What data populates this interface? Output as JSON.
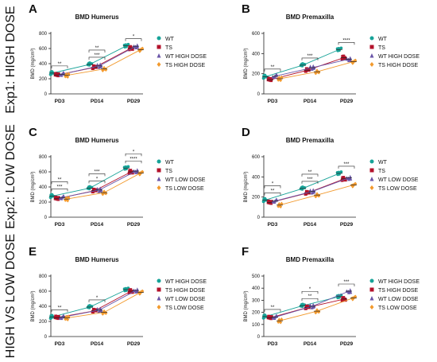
{
  "row_labels": [
    "Exp1: HIGH DOSE",
    "Exp2: LOW DOSE",
    "HIGH VS LOW DOSE"
  ],
  "colors": {
    "teal": "#17a398",
    "red": "#b3122b",
    "purple": "#6a55a8",
    "orange": "#f29a2e"
  },
  "chart_data": [
    {
      "type": "scatter",
      "panel": "A",
      "title": "BMD Humerus",
      "ylabel": "BMD (mg/cm³)",
      "ylim": [
        0,
        800
      ],
      "yticks": [
        0,
        200,
        400,
        600,
        800
      ],
      "categories": [
        "PD3",
        "PD14",
        "PD29"
      ],
      "series": [
        {
          "name": "WT",
          "color": "#17a398",
          "marker": "circle",
          "values": [
            275,
            390,
            635
          ]
        },
        {
          "name": "TS",
          "color": "#b3122b",
          "marker": "square",
          "values": [
            250,
            350,
            605
          ]
        },
        {
          "name": "WT HIGH DOSE",
          "color": "#6a55a8",
          "marker": "triangle",
          "values": [
            260,
            370,
            630
          ]
        },
        {
          "name": "TS HIGH DOSE",
          "color": "#f29a2e",
          "marker": "diamond",
          "values": [
            245,
            330,
            585
          ]
        }
      ],
      "annotations": [
        "**",
        "***",
        "*",
        "**"
      ]
    },
    {
      "type": "scatter",
      "panel": "B",
      "title": "BMD Premaxilla",
      "ylabel": "BMD (mg/cm³)",
      "ylim": [
        0,
        600
      ],
      "yticks": [
        0,
        200,
        400,
        600
      ],
      "categories": [
        "PD3",
        "PD14",
        "PD29"
      ],
      "series": [
        {
          "name": "WT",
          "color": "#17a398",
          "marker": "circle",
          "values": [
            170,
            285,
            440
          ]
        },
        {
          "name": "TS",
          "color": "#b3122b",
          "marker": "square",
          "values": [
            140,
            235,
            360
          ]
        },
        {
          "name": "WT HIGH DOSE",
          "color": "#6a55a8",
          "marker": "triangle",
          "values": [
            175,
            260,
            345
          ]
        },
        {
          "name": "TS HIGH DOSE",
          "color": "#f29a2e",
          "marker": "diamond",
          "values": [
            150,
            220,
            320
          ]
        }
      ],
      "annotations": [
        "**",
        "***",
        "****"
      ]
    },
    {
      "type": "scatter",
      "panel": "C",
      "title": "BMD Humerus",
      "ylabel": "BMD (mg/cm³)",
      "ylim": [
        0,
        800
      ],
      "yticks": [
        0,
        200,
        400,
        600,
        800
      ],
      "categories": [
        "PD3",
        "PD14",
        "PD29"
      ],
      "series": [
        {
          "name": "WT",
          "color": "#17a398",
          "marker": "circle",
          "values": [
            280,
            385,
            650
          ]
        },
        {
          "name": "TS",
          "color": "#b3122b",
          "marker": "square",
          "values": [
            245,
            350,
            600
          ]
        },
        {
          "name": "WT LOW DOSE",
          "color": "#6a55a8",
          "marker": "triangle",
          "values": [
            260,
            360,
            610
          ]
        },
        {
          "name": "TS LOW DOSE",
          "color": "#f29a2e",
          "marker": "diamond",
          "values": [
            240,
            325,
            585
          ]
        }
      ],
      "annotations": [
        "***",
        "*",
        "****",
        "***",
        "**",
        "*"
      ]
    },
    {
      "type": "scatter",
      "panel": "D",
      "title": "BMD Premaxilla",
      "ylabel": "BMD (mg/cm³)",
      "ylim": [
        0,
        600
      ],
      "yticks": [
        0,
        200,
        400,
        600
      ],
      "categories": [
        "PD3",
        "PD14",
        "PD29"
      ],
      "series": [
        {
          "name": "WT",
          "color": "#17a398",
          "marker": "circle",
          "values": [
            170,
            285,
            435
          ]
        },
        {
          "name": "TS",
          "color": "#b3122b",
          "marker": "square",
          "values": [
            145,
            240,
            380
          ]
        },
        {
          "name": "WT LOW DOSE",
          "color": "#6a55a8",
          "marker": "triangle",
          "values": [
            160,
            255,
            390
          ]
        },
        {
          "name": "TS LOW DOSE",
          "color": "#f29a2e",
          "marker": "diamond",
          "values": [
            120,
            220,
            320
          ]
        }
      ],
      "annotations": [
        "**",
        "***",
        "***",
        "**",
        "*"
      ]
    },
    {
      "type": "scatter",
      "panel": "E",
      "title": "BMD Humerus",
      "ylabel": "BMD (mg/cm³)",
      "ylim": [
        0,
        800
      ],
      "yticks": [
        0,
        200,
        400,
        600,
        800
      ],
      "categories": [
        "PD3",
        "PD14",
        "PD29"
      ],
      "series": [
        {
          "name": "WT HIGH DOSE",
          "color": "#17a398",
          "marker": "circle",
          "values": [
            260,
            390,
            620
          ]
        },
        {
          "name": "TS HIGH DOSE",
          "color": "#b3122b",
          "marker": "square",
          "values": [
            250,
            340,
            600
          ]
        },
        {
          "name": "WT LOW DOSE",
          "color": "#6a55a8",
          "marker": "triangle",
          "values": [
            255,
            350,
            610
          ]
        },
        {
          "name": "TS LOW DOSE",
          "color": "#f29a2e",
          "marker": "diamond",
          "values": [
            245,
            320,
            585
          ]
        }
      ],
      "annotations": [
        "**",
        "*"
      ]
    },
    {
      "type": "scatter",
      "panel": "F",
      "title": "BMD Premaxilla",
      "ylabel": "BMD (mg/cm³)",
      "ylim": [
        0,
        500
      ],
      "yticks": [
        0,
        100,
        200,
        300,
        400,
        500
      ],
      "categories": [
        "PD3",
        "PD14",
        "PD29"
      ],
      "series": [
        {
          "name": "WT HIGH DOSE",
          "color": "#17a398",
          "marker": "circle",
          "values": [
            165,
            255,
            330
          ]
        },
        {
          "name": "TS HIGH DOSE",
          "color": "#b3122b",
          "marker": "square",
          "values": [
            155,
            240,
            310
          ]
        },
        {
          "name": "WT LOW DOSE",
          "color": "#6a55a8",
          "marker": "triangle",
          "values": [
            160,
            250,
            375
          ]
        },
        {
          "name": "TS LOW DOSE",
          "color": "#f29a2e",
          "marker": "diamond",
          "values": [
            130,
            210,
            320
          ]
        }
      ],
      "annotations": [
        "**",
        "**",
        "***",
        "*"
      ]
    }
  ]
}
